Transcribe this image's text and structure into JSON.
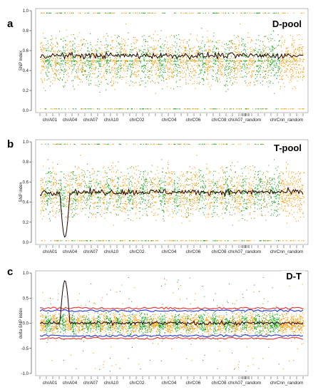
{
  "colors": {
    "orange": "#ff9a00",
    "green": "#1faa1f",
    "olive": "#8a9a10",
    "trend": "#200000",
    "trend_red": "#cc1100",
    "threshold_red": "#e8302a",
    "threshold_blue": "#2233dd",
    "label_bg": "#1a8a1a"
  },
  "chart_data": [
    {
      "type": "scatter",
      "panel": "a",
      "label": "D-pool",
      "ylabel": "SNP index",
      "ylim": [
        0,
        1
      ],
      "yticks": [
        "0.0",
        "0.2",
        "0.4",
        "0.6",
        "0.8",
        "1.0"
      ],
      "chromosome_labels": [
        "chrA01",
        "chrA04",
        "chrA07",
        "chrA10",
        "chrC02",
        "chrC04",
        "chrC06",
        "chrC08",
        "chrA07_random",
        "chrCnn_random"
      ],
      "trend_level": 0.55
    },
    {
      "type": "scatter",
      "panel": "b",
      "label": "T-pool",
      "ylabel": "SNP index",
      "ylim": [
        0,
        1
      ],
      "yticks": [
        "0.0",
        "0.2",
        "0.4",
        "0.6",
        "0.8",
        "1.0"
      ],
      "chromosome_labels": [
        "chrA01",
        "chrA04",
        "chrA07",
        "chrA10",
        "chrC02",
        "chrC04",
        "chrC06",
        "chrC08",
        "chrA07_random",
        "chrCnn_random"
      ],
      "trend_level": 0.5
    },
    {
      "type": "scatter",
      "panel": "c",
      "label": "D-T",
      "ylabel": "delta SNP index",
      "ylim": [
        -1,
        1
      ],
      "yticks": [
        "-1.0",
        "-0.5",
        "0.0",
        "0.5",
        "1.0"
      ],
      "chromosome_labels": [
        "chrA01",
        "chrA04",
        "chrA07",
        "chrA10",
        "chrC02",
        "chrC04",
        "chrC06",
        "chrC08",
        "chrA07_random",
        "chrCnn_random"
      ],
      "trend_level": 0.0,
      "thresholds": [
        0.3,
        0.25,
        -0.25,
        -0.3
      ]
    }
  ]
}
